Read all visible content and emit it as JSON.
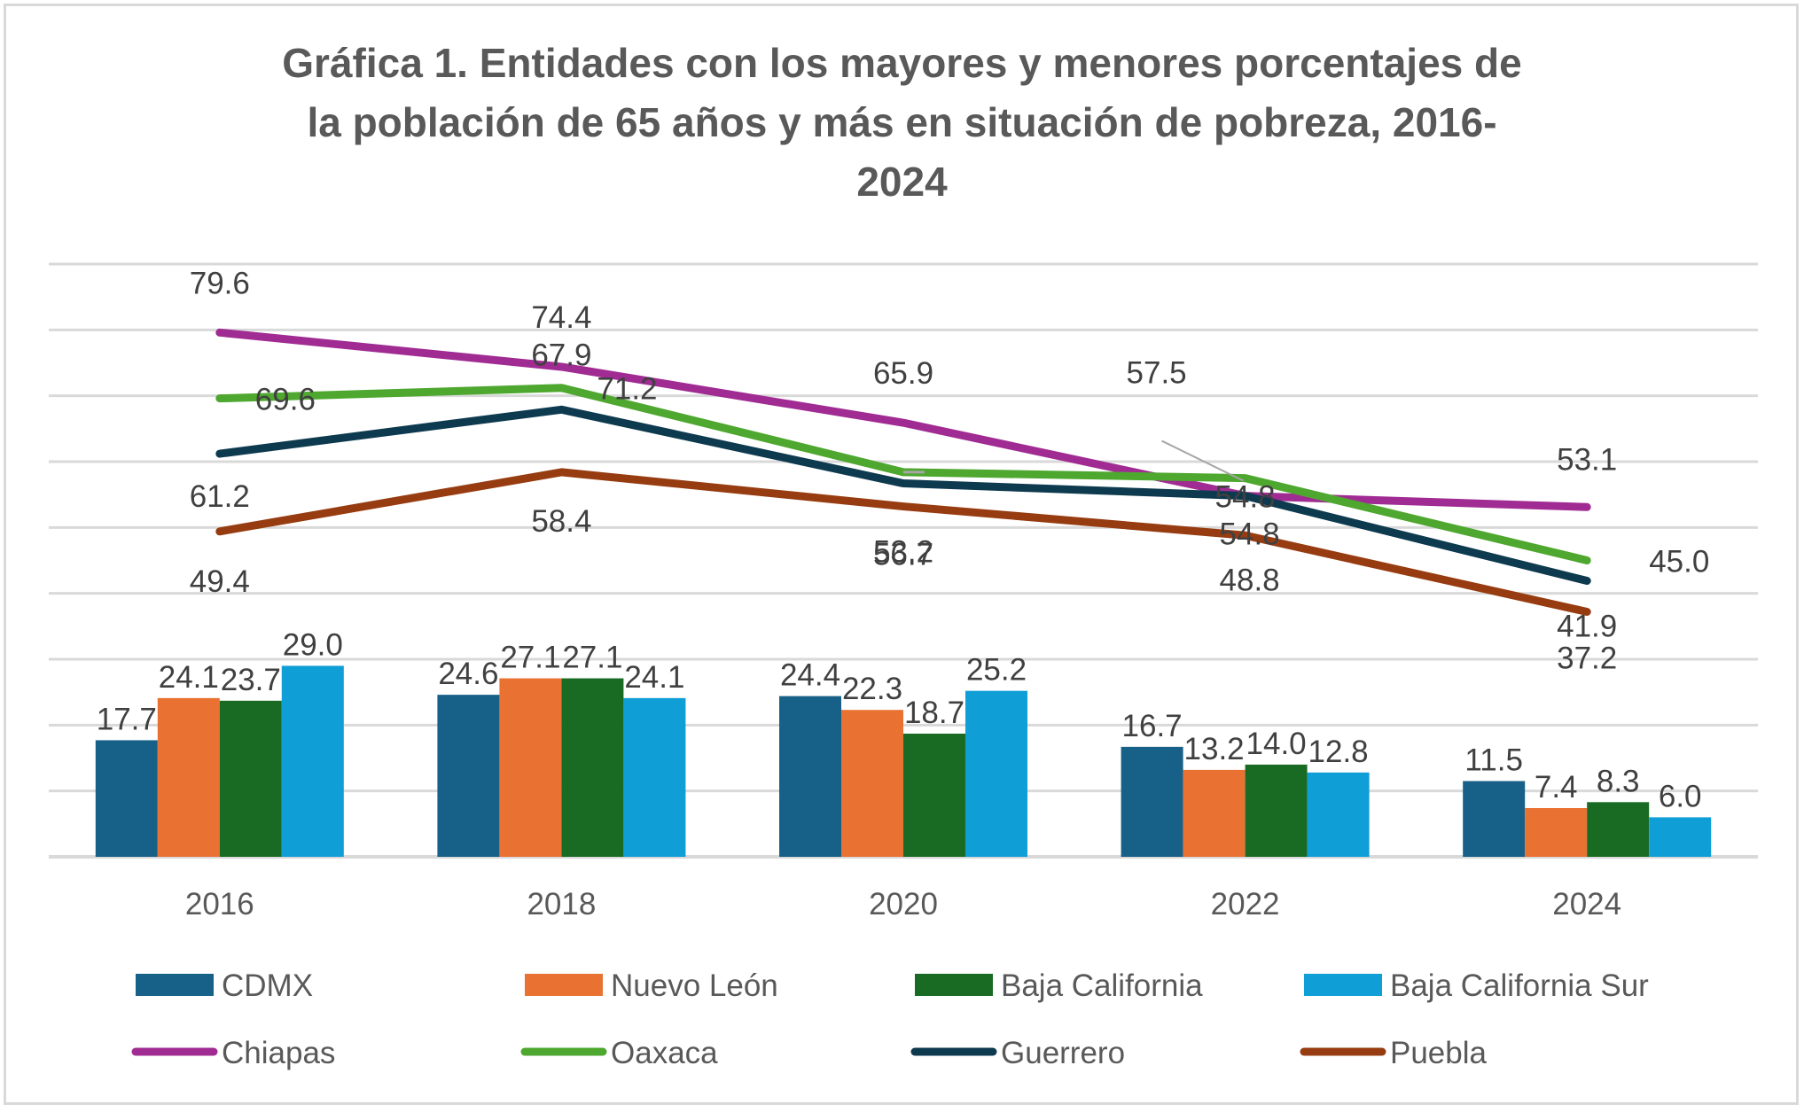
{
  "chart_data": {
    "type": "bar+line",
    "title_lines": [
      "Gráfica 1. Entidades con los mayores y menores porcentajes de",
      "la población de 65 años y más en situación de pobreza, 2016-",
      "2024"
    ],
    "title": "Gráfica 1. Entidades con los mayores y menores porcentajes de la población de 65 años y más en situación de pobreza, 2016-2024",
    "xlabel": "",
    "ylabel": "",
    "categories": [
      "2016",
      "2018",
      "2020",
      "2022",
      "2024"
    ],
    "ylim": [
      0,
      90
    ],
    "grid": true,
    "y_axis_labels_visible": false,
    "legend_position": "bottom",
    "bar_series": [
      {
        "name": "CDMX",
        "color": "#176087",
        "values": [
          17.7,
          24.6,
          24.4,
          16.7,
          11.5
        ],
        "labels": [
          "17.7",
          "24.6",
          "24.4",
          "16.7",
          "11.5"
        ]
      },
      {
        "name": "Nuevo León",
        "color": "#E97132",
        "values": [
          24.1,
          27.1,
          22.3,
          13.2,
          7.4
        ],
        "labels": [
          "24.1",
          "27.1",
          "22.3",
          "13.2",
          "7.4"
        ]
      },
      {
        "name": "Baja California",
        "color": "#196B24",
        "values": [
          23.7,
          27.1,
          18.7,
          14.0,
          8.3
        ],
        "labels": [
          "23.7",
          "27.1",
          "18.7",
          "14.0",
          "8.3"
        ]
      },
      {
        "name": "Baja California Sur",
        "color": "#0F9ED5",
        "values": [
          29.0,
          24.1,
          25.2,
          12.8,
          6.0
        ],
        "labels": [
          "29.0",
          "24.1",
          "25.2",
          "12.8",
          "6.0"
        ]
      }
    ],
    "line_series": [
      {
        "name": "Chiapas",
        "color": "#A02B93",
        "values": [
          79.6,
          74.4,
          65.9,
          54.8,
          53.1
        ],
        "labels": [
          "79.6",
          "74.4",
          "65.9",
          "54.8",
          "53.1"
        ]
      },
      {
        "name": "Oaxaca",
        "color": "#4EA72E",
        "values": [
          69.6,
          71.2,
          58.4,
          57.5,
          45.0
        ],
        "labels": [
          "69.6",
          "71.2",
          "",
          "57.5",
          "45.0"
        ]
      },
      {
        "name": "Guerrero",
        "color": "#0E3A4F",
        "values": [
          61.2,
          67.9,
          56.7,
          54.8,
          41.9
        ],
        "labels": [
          "61.2",
          "67.9",
          "56.7",
          "54.8",
          "41.9"
        ]
      },
      {
        "name": "Puebla",
        "color": "#973C10",
        "values": [
          49.4,
          58.4,
          53.2,
          48.8,
          37.2
        ],
        "labels": [
          "49.4",
          "58.4",
          "53.2",
          "48.8",
          "37.2"
        ]
      }
    ]
  }
}
